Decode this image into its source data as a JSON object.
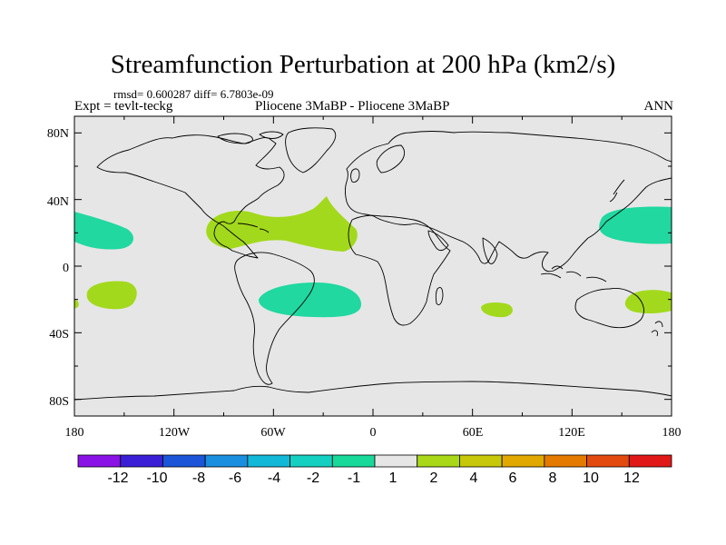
{
  "title": "Streamfunction Perturbation at 200 hPa (km2/s)",
  "stats": "rmsd= 0.600287 diff= 6.7803e-09",
  "expt": "Expt = tevlt-teckg",
  "center_label": "Pliocene   3MaBP - Pliocene   3MaBP",
  "season": "ANN",
  "lat_labels": [
    "80N",
    "40N",
    "0",
    "40S",
    "80S"
  ],
  "lon_labels": [
    "180",
    "120W",
    "60W",
    "0",
    "60E",
    "120E",
    "180"
  ],
  "colorbar": {
    "labels": [
      "-12",
      "-10",
      "-8",
      "-6",
      "-4",
      "-2",
      "-1",
      "1",
      "2",
      "4",
      "6",
      "8",
      "10",
      "12"
    ],
    "colors": [
      "#8a12e6",
      "#3a1fd6",
      "#1c55d8",
      "#1a8fe0",
      "#12b8d8",
      "#14d0c0",
      "#18d89a",
      "#e6e6e6",
      "#a8d818",
      "#c8c80a",
      "#e0a800",
      "#e57a00",
      "#e34a10",
      "#e01818"
    ]
  },
  "colors": {
    "ocean": "#e6e6e6",
    "neg": "#20d8a0",
    "pos": "#a2d91c",
    "border": "#000000"
  }
}
